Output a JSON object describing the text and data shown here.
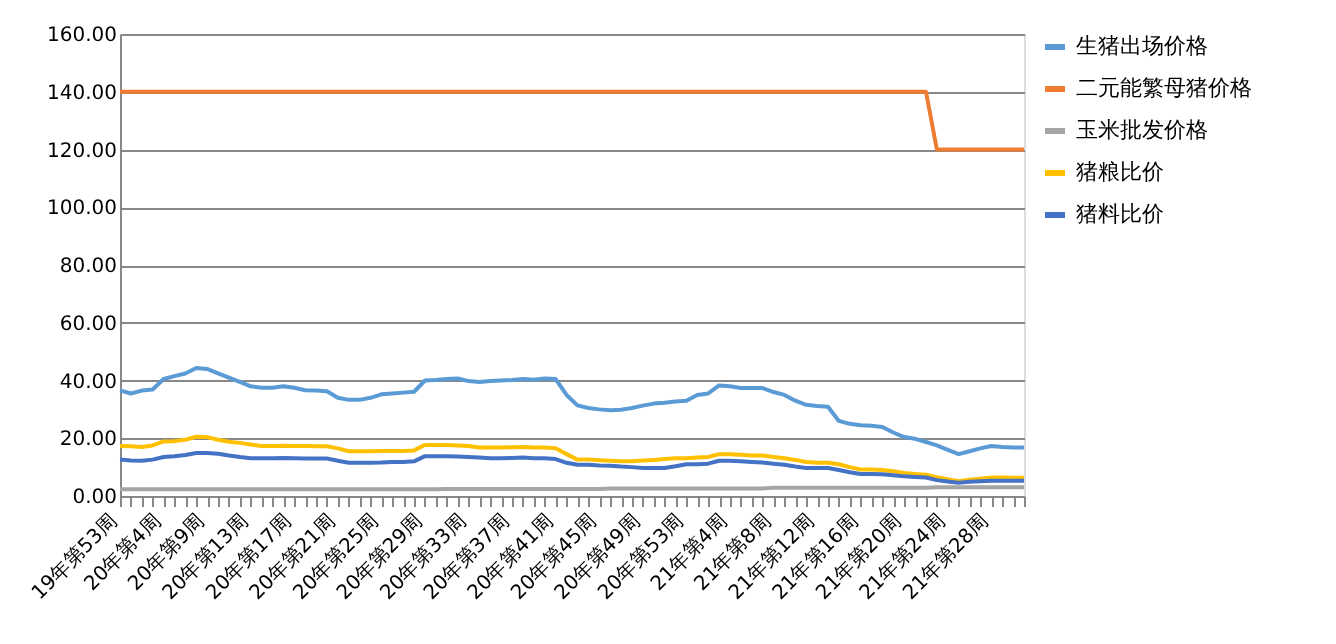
{
  "chart_data": {
    "type": "line",
    "categories": [
      "19年第53周",
      null,
      null,
      null,
      "20年第4周",
      null,
      null,
      null,
      "20年第9周",
      null,
      null,
      null,
      "20年第13周",
      null,
      null,
      null,
      "20年第17周",
      null,
      null,
      null,
      "20年第21周",
      null,
      null,
      null,
      "20年第25周",
      null,
      null,
      null,
      "20年第29周",
      null,
      null,
      null,
      "20年第33周",
      null,
      null,
      null,
      "20年第37周",
      null,
      null,
      null,
      "20年第41周",
      null,
      null,
      null,
      "20年第45周",
      null,
      null,
      null,
      "20年第49周",
      null,
      null,
      null,
      "20年第53周",
      null,
      null,
      null,
      "21年第4周",
      null,
      null,
      null,
      "21年第8周",
      null,
      null,
      null,
      "21年第12周",
      null,
      null,
      null,
      "21年第16周",
      null,
      null,
      null,
      "21年第20周",
      null,
      null,
      null,
      "21年第24周",
      null,
      null,
      null,
      "21年第28周",
      null,
      null,
      null
    ],
    "series": [
      {
        "name": "生猪出场价格",
        "color": "#5b9bd5",
        "values": [
          36.6,
          35.5,
          36.5,
          36.9,
          40.5,
          41.5,
          42.4,
          44.3,
          44.0,
          42.5,
          41.0,
          39.5,
          38.0,
          37.5,
          37.5,
          38.0,
          37.5,
          36.6,
          36.5,
          36.3,
          34.0,
          33.3,
          33.3,
          34.0,
          35.2,
          35.5,
          35.8,
          36.1,
          40.0,
          40.2,
          40.5,
          40.7,
          39.8,
          39.5,
          39.8,
          40.0,
          40.2,
          40.5,
          40.3,
          40.7,
          40.5,
          35.0,
          31.4,
          30.5,
          30.0,
          29.7,
          29.9,
          30.5,
          31.3,
          32.0,
          32.3,
          32.7,
          33.0,
          35.0,
          35.5,
          38.3,
          38.0,
          37.4,
          37.4,
          37.4,
          36.0,
          35.0,
          33.0,
          31.6,
          31.2,
          30.9,
          26.0,
          25.0,
          24.5,
          24.3,
          23.9,
          22.0,
          20.4,
          19.8,
          18.7,
          17.5,
          16.0,
          14.5,
          15.5,
          16.5,
          17.3,
          17.0,
          16.8,
          16.8
        ]
      },
      {
        "name": "二元能繁母猪价格",
        "color": "#ed7d31",
        "values": [
          140,
          140,
          140,
          140,
          140,
          140,
          140,
          140,
          140,
          140,
          140,
          140,
          140,
          140,
          140,
          140,
          140,
          140,
          140,
          140,
          140,
          140,
          140,
          140,
          140,
          140,
          140,
          140,
          140,
          140,
          140,
          140,
          140,
          140,
          140,
          140,
          140,
          140,
          140,
          140,
          140,
          140,
          140,
          140,
          140,
          140,
          140,
          140,
          140,
          140,
          140,
          140,
          140,
          140,
          140,
          140,
          140,
          140,
          140,
          140,
          140,
          140,
          140,
          140,
          140,
          140,
          140,
          140,
          140,
          140,
          140,
          140,
          140,
          140,
          140,
          120,
          120,
          120,
          120,
          120,
          120,
          120,
          120,
          120
        ]
      },
      {
        "name": "玉米批发价格",
        "color": "#a5a5a5",
        "values": [
          2.3,
          2.3,
          2.3,
          2.3,
          2.3,
          2.3,
          2.3,
          2.3,
          2.3,
          2.3,
          2.3,
          2.3,
          2.3,
          2.3,
          2.3,
          2.3,
          2.3,
          2.3,
          2.3,
          2.3,
          2.3,
          2.3,
          2.3,
          2.3,
          2.3,
          2.3,
          2.3,
          2.3,
          2.3,
          2.3,
          2.4,
          2.4,
          2.4,
          2.4,
          2.4,
          2.4,
          2.4,
          2.4,
          2.4,
          2.4,
          2.4,
          2.4,
          2.4,
          2.4,
          2.4,
          2.6,
          2.6,
          2.6,
          2.6,
          2.6,
          2.6,
          2.6,
          2.6,
          2.6,
          2.6,
          2.6,
          2.6,
          2.6,
          2.6,
          2.6,
          2.9,
          2.9,
          2.9,
          2.9,
          2.9,
          2.9,
          2.9,
          2.9,
          2.9,
          2.9,
          2.9,
          2.9,
          2.9,
          2.9,
          2.9,
          3.0,
          3.0,
          3.0,
          3.0,
          3.0,
          3.0,
          3.0,
          3.0,
          3.0
        ]
      },
      {
        "name": "猪粮比价",
        "color": "#ffc000",
        "values": [
          17.3,
          17.2,
          17.0,
          17.5,
          18.9,
          19.0,
          19.5,
          20.5,
          20.4,
          19.5,
          18.8,
          18.4,
          17.8,
          17.3,
          17.3,
          17.4,
          17.3,
          17.3,
          17.2,
          17.2,
          16.5,
          15.5,
          15.5,
          15.5,
          15.6,
          15.6,
          15.6,
          15.8,
          17.7,
          17.7,
          17.7,
          17.5,
          17.3,
          16.8,
          16.8,
          16.8,
          16.9,
          17.0,
          16.8,
          16.8,
          16.5,
          14.5,
          12.6,
          12.6,
          12.4,
          12.2,
          12.0,
          12.0,
          12.3,
          12.5,
          12.8,
          13.1,
          13.1,
          13.3,
          13.5,
          14.5,
          14.5,
          14.3,
          14.0,
          14.0,
          13.5,
          13.1,
          12.5,
          11.8,
          11.5,
          11.5,
          11.0,
          10.0,
          9.2,
          9.2,
          9.0,
          8.6,
          8.0,
          7.6,
          7.4,
          6.5,
          5.8,
          5.1,
          5.6,
          6.0,
          6.4,
          6.4,
          6.3,
          6.3
        ]
      },
      {
        "name": "猪料比价",
        "color": "#4472c4",
        "values": [
          12.6,
          12.3,
          12.2,
          12.6,
          13.5,
          13.8,
          14.2,
          14.9,
          14.9,
          14.6,
          14.0,
          13.5,
          13.1,
          13.1,
          13.1,
          13.2,
          13.1,
          13.0,
          13.0,
          13.0,
          12.2,
          11.5,
          11.5,
          11.5,
          11.6,
          11.8,
          11.8,
          12.0,
          13.8,
          13.8,
          13.8,
          13.7,
          13.5,
          13.3,
          13.1,
          13.1,
          13.2,
          13.3,
          13.1,
          13.1,
          12.8,
          11.5,
          10.8,
          10.8,
          10.6,
          10.5,
          10.2,
          10.0,
          9.7,
          9.7,
          9.7,
          10.3,
          11.0,
          11.0,
          11.2,
          12.2,
          12.2,
          12.0,
          11.8,
          11.6,
          11.2,
          10.8,
          10.2,
          9.7,
          9.7,
          9.7,
          9.0,
          8.2,
          7.6,
          7.6,
          7.5,
          7.2,
          6.8,
          6.6,
          6.4,
          5.5,
          5.0,
          4.6,
          4.9,
          5.1,
          5.3,
          5.3,
          5.3,
          5.3
        ]
      }
    ],
    "ylim": [
      0,
      160
    ],
    "yticks": [
      {
        "value": 0,
        "label": "0.00"
      },
      {
        "value": 20,
        "label": "20.00"
      },
      {
        "value": 40,
        "label": "40.00"
      },
      {
        "value": 60,
        "label": "60.00"
      },
      {
        "value": 80,
        "label": "80.00"
      },
      {
        "value": 100,
        "label": "100.00"
      },
      {
        "value": 120,
        "label": "120.00"
      },
      {
        "value": 140,
        "label": "140.00"
      },
      {
        "value": 160,
        "label": "160.00"
      }
    ],
    "grid": "y",
    "legend": "right",
    "marker": "none",
    "line_style": "solid"
  }
}
